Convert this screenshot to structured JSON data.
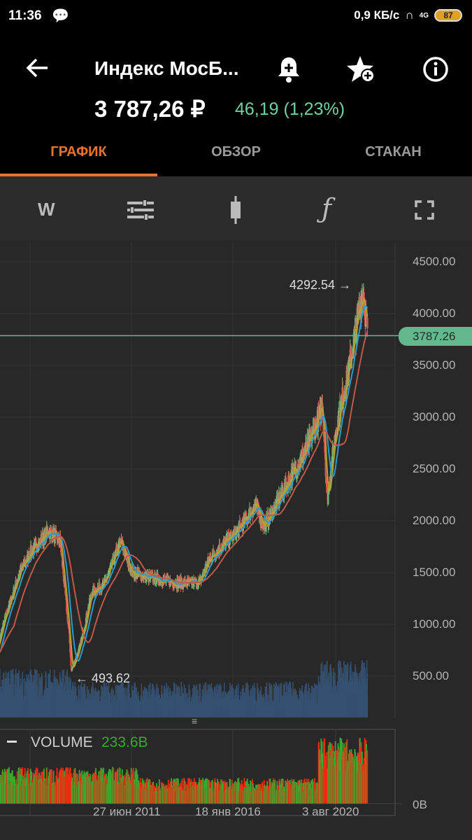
{
  "status": {
    "time": "11:36",
    "speed": "0,9 КБ/с",
    "network": "4G",
    "battery": "87"
  },
  "header": {
    "title": "Индекс МосБ...",
    "price": "3 787,26 ₽",
    "change": "46,19 (1,23%)"
  },
  "tabs": [
    {
      "label": "ГРАФИК"
    },
    {
      "label": "ОБЗОР"
    },
    {
      "label": "СТАКАН"
    }
  ],
  "toolbar": {
    "period": "W"
  },
  "colors": {
    "accent": "#e8732a",
    "up": "#6fd3a0",
    "candle_up": "#7ab87a",
    "candle_down": "#e05a50",
    "vol_up": "#3aa830",
    "vol_down": "#f02a10"
  },
  "chart_data": {
    "type": "candlestick",
    "y_ticks": [
      "4500.00",
      "4000.00",
      "3500.00",
      "3000.00",
      "2500.00",
      "2000.00",
      "1500.00",
      "1000.00",
      "500.00"
    ],
    "ylim": [
      500,
      4500
    ],
    "x_ticks": [
      "27 июн 2011",
      "18 янв 2016",
      "3 авг 2020"
    ],
    "current_price": "3787.26",
    "max_label": "4292.54",
    "min_label": "493.62",
    "close_keypoints": {
      "year": [
        2005.3,
        2005.9,
        2006.5,
        2007.0,
        2007.8,
        2008.3,
        2008.7,
        2008.8,
        2009.2,
        2009.7,
        2010.3,
        2011.0,
        2011.5,
        2012.3,
        2013.5,
        2014.5,
        2015.0,
        2016.2,
        2017.0,
        2017.4,
        2018.4,
        2019.3,
        2020.0,
        2020.2,
        2020.6,
        2021.2,
        2021.8,
        2022.0
      ],
      "value": [
        600,
        1100,
        1500,
        1700,
        1900,
        1800,
        900,
        550,
        800,
        1300,
        1400,
        1800,
        1500,
        1450,
        1400,
        1400,
        1650,
        1900,
        2150,
        1950,
        2350,
        2700,
        3100,
        2200,
        2900,
        3500,
        4250,
        3787
      ]
    },
    "volume": {
      "label": "VOLUME",
      "value": "233.6B",
      "axis_label": "0B"
    }
  }
}
